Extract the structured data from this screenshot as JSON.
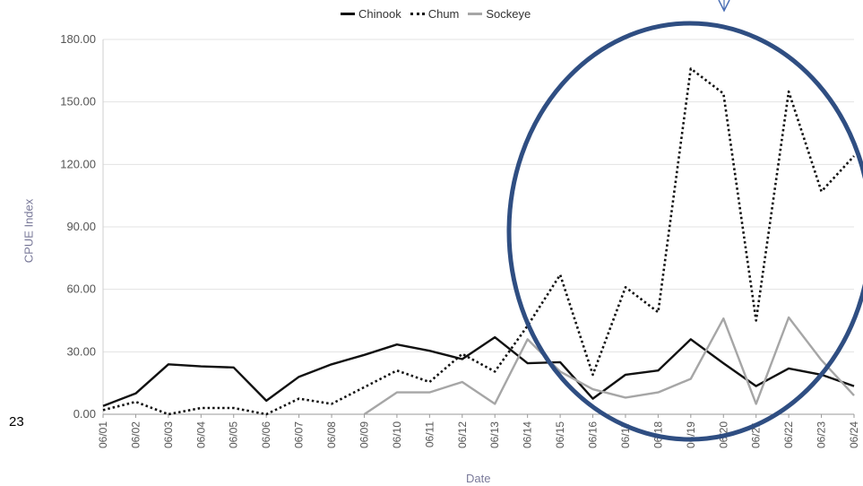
{
  "page_number": "23",
  "chart_data": {
    "type": "line",
    "xlabel": "Date",
    "ylabel": "CPUE Index",
    "ylim": [
      0,
      180
    ],
    "yticks": [
      "0.00",
      "30.00",
      "60.00",
      "90.00",
      "120.00",
      "150.00",
      "180.00"
    ],
    "grid": true,
    "legend_position": "top",
    "categories": [
      "06/01",
      "06/02",
      "06/03",
      "06/04",
      "06/05",
      "06/06",
      "06/07",
      "06/08",
      "06/09",
      "06/10",
      "06/11",
      "06/12",
      "06/13",
      "06/14",
      "06/15",
      "06/16",
      "06/17",
      "06/18",
      "06/19",
      "06/20",
      "06/21",
      "06/22",
      "06/23",
      "06/24"
    ],
    "series": [
      {
        "name": "Chinook",
        "color": "#111111",
        "style": "solid",
        "values": [
          4,
          10,
          24,
          23,
          22.5,
          6.5,
          18,
          24,
          28.5,
          33.5,
          30.5,
          26.5,
          37,
          24.5,
          25,
          7.5,
          19,
          21,
          36,
          24.5,
          13.5,
          22,
          19,
          13.5
        ]
      },
      {
        "name": "Chum",
        "color": "#111111",
        "style": "dotted",
        "values": [
          2,
          6,
          0,
          3,
          3,
          0,
          7.5,
          5,
          13,
          21,
          15.5,
          29,
          20.5,
          42.5,
          67,
          19,
          61,
          49,
          166,
          154,
          45,
          155,
          107,
          124
        ]
      },
      {
        "name": "Sockeye",
        "color": "#a6a6a6",
        "style": "solid",
        "values": [
          null,
          null,
          null,
          null,
          null,
          null,
          null,
          null,
          0,
          10.5,
          10.5,
          15.5,
          5,
          36,
          20.5,
          12,
          8,
          10.5,
          17,
          46,
          5,
          46.5,
          26,
          9
        ]
      }
    ],
    "annotation": {
      "shape": "ellipse",
      "color": "#2f4e82",
      "marker": "down-arrow"
    }
  }
}
